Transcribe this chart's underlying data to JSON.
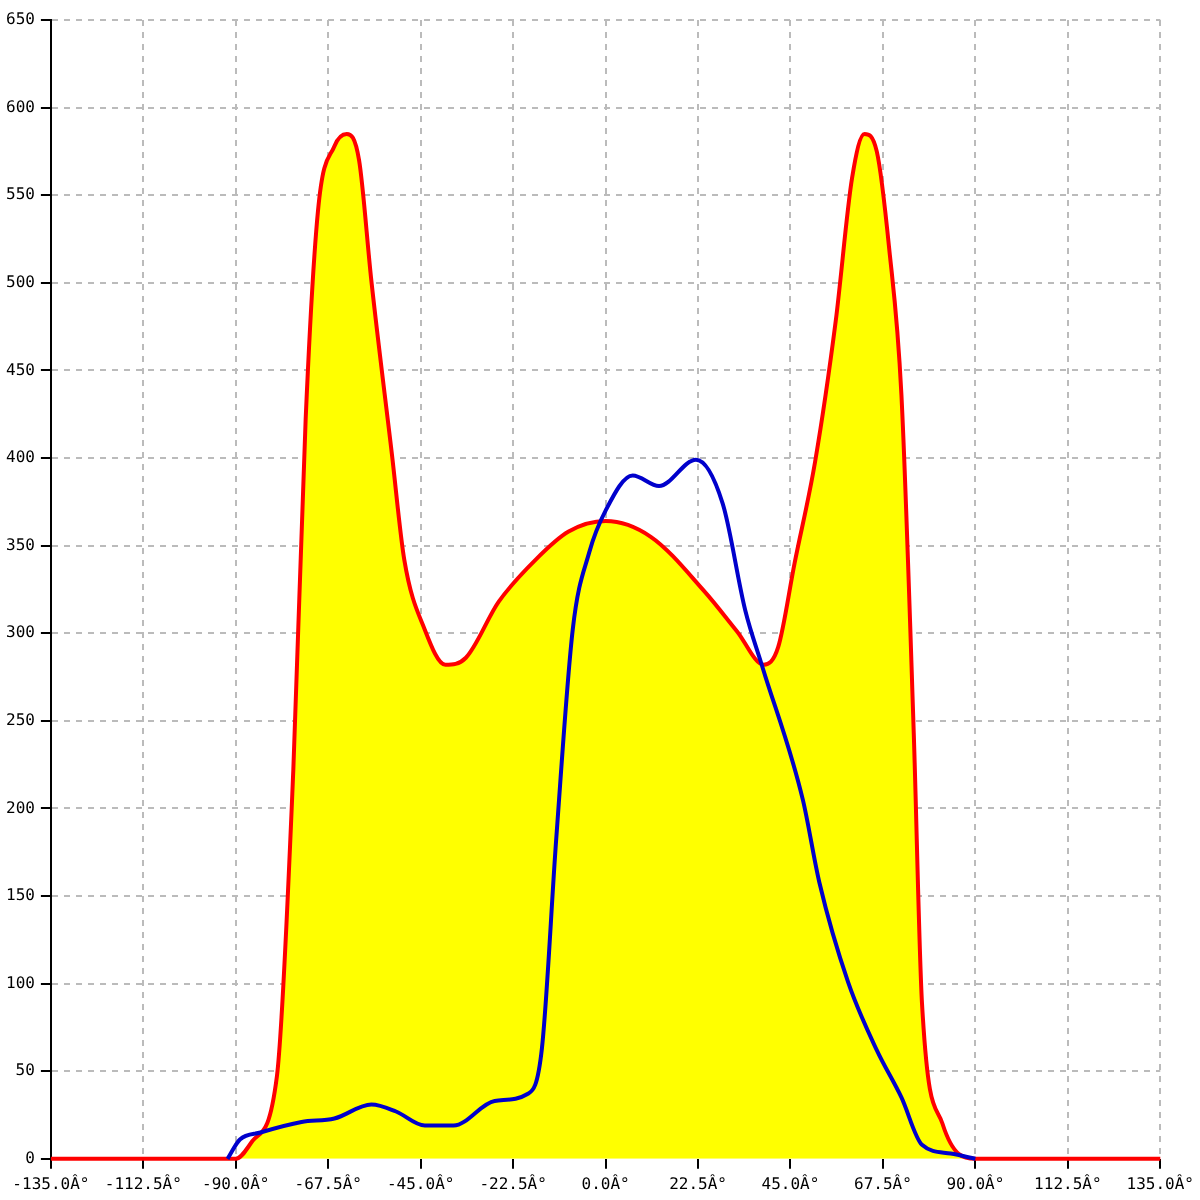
{
  "chart_data": {
    "type": "area",
    "xlim": [
      -135,
      135
    ],
    "ylim": [
      0,
      650
    ],
    "xticks": [
      {
        "value": -135,
        "label": "-135.0Â°"
      },
      {
        "value": -112.5,
        "label": "-112.5Â°"
      },
      {
        "value": -90,
        "label": "-90.0Â°"
      },
      {
        "value": -67.5,
        "label": "-67.5Â°"
      },
      {
        "value": -45,
        "label": "-45.0Â°"
      },
      {
        "value": -22.5,
        "label": "-22.5Â°"
      },
      {
        "value": 0,
        "label": "0.0Â°"
      },
      {
        "value": 22.5,
        "label": "22.5Â°"
      },
      {
        "value": 45,
        "label": "45.0Â°"
      },
      {
        "value": 67.5,
        "label": "67.5Â°"
      },
      {
        "value": 90,
        "label": "90.0Â°"
      },
      {
        "value": 112.5,
        "label": "112.5Â°"
      },
      {
        "value": 135,
        "label": "135.0Â°"
      }
    ],
    "yticks": [
      0,
      50,
      100,
      150,
      200,
      250,
      300,
      350,
      400,
      450,
      500,
      550,
      600,
      650
    ],
    "grid": true,
    "legend": false,
    "marker": "none",
    "line_style": "solid",
    "series": [
      {
        "type": "area",
        "color": "#ffff00",
        "x": [
          -135,
          -90,
          -86,
          -80,
          -76,
          -73,
          -70,
          -66,
          -63,
          -60,
          -57,
          -52,
          -49,
          -44,
          -39,
          -34,
          -26,
          -17,
          -9,
          0,
          11,
          24,
          32,
          38.5,
          42,
          46,
          51,
          56,
          60,
          63,
          66,
          69,
          72,
          75,
          77,
          82,
          90,
          135
        ],
        "values": [
          0,
          0,
          10,
          47,
          222,
          422,
          541,
          578,
          585,
          570,
          501,
          402,
          342,
          302,
          282,
          286,
          318,
          342,
          358,
          364,
          355,
          324,
          301,
          282,
          292,
          340,
          398,
          478,
          560,
          585,
          575,
          520,
          436,
          243,
          89,
          20,
          0,
          0
        ]
      },
      {
        "type": "line",
        "color": "#0000cc",
        "x": [
          -92,
          -89,
          -84,
          -74,
          -66,
          -57,
          -51,
          -44,
          -37,
          -27,
          -19,
          -15.5,
          -12,
          -8,
          -4,
          0,
          6.6,
          13,
          22,
          28.5,
          34,
          38,
          48,
          52,
          59,
          66,
          72,
          77,
          84,
          90
        ],
        "values": [
          0,
          11,
          15,
          21,
          23,
          31,
          27,
          19,
          19,
          33,
          37,
          63,
          183,
          302,
          346,
          370,
          390,
          384,
          399,
          374,
          313,
          282,
          205,
          158,
          101,
          62,
          35,
          8,
          3,
          0
        ]
      }
    ]
  }
}
